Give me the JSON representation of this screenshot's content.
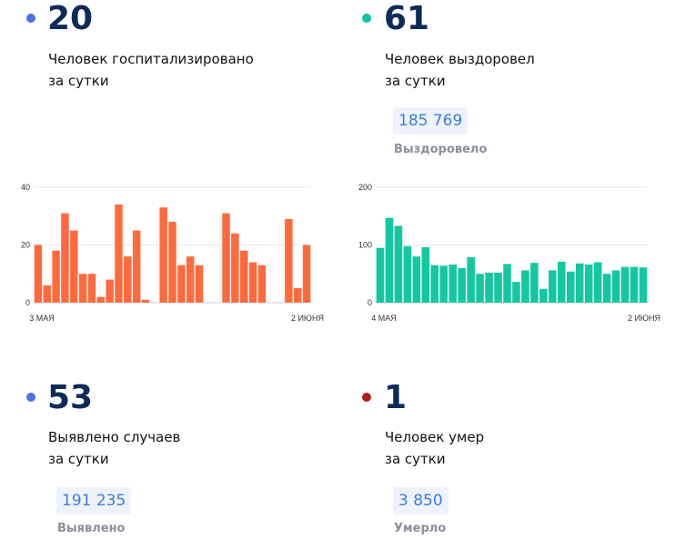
{
  "colors": {
    "dot_hospitalized": "#4a72e0",
    "dot_recovered": "#12c2a0",
    "dot_cases": "#4a72e0",
    "dot_deaths": "#b01c1c",
    "bars_hospitalized": "#ff6a3d",
    "bars_recovered": "#14c7a1"
  },
  "hospitalized": {
    "number": "20",
    "label_line1": "Человек госпитализировано",
    "label_line2": "за сутки"
  },
  "recovered": {
    "number": "61",
    "label_line1": "Человек выздоровел",
    "label_line2": "за сутки",
    "total": "185 769",
    "total_caption": "Выздоровело"
  },
  "cases": {
    "number": "53",
    "label_line1": "Выявлено случаев",
    "label_line2": "за сутки",
    "total": "191 235",
    "total_caption": "Выявлено"
  },
  "deaths": {
    "number": "1",
    "label_line1": "Человек умер",
    "label_line2": "за сутки",
    "total": "3 850",
    "total_caption": "Умерло"
  },
  "chart_data": [
    {
      "type": "bar",
      "x_start_label": "3 МАЯ",
      "x_end_label": "2 ИЮНЯ",
      "yticks": [
        0,
        20,
        40
      ],
      "ylim": [
        0,
        40
      ],
      "grid": true,
      "values": [
        20,
        6,
        18,
        31,
        25,
        10,
        10,
        2,
        8,
        34,
        16,
        25,
        1,
        null,
        33,
        28,
        13,
        16,
        13,
        null,
        null,
        31,
        24,
        18,
        14,
        13,
        null,
        null,
        29,
        5,
        20
      ]
    },
    {
      "type": "bar",
      "x_start_label": "4 МАЯ",
      "x_end_label": "2 ИЮНЯ",
      "yticks": [
        0,
        100,
        200
      ],
      "ylim": [
        0,
        200
      ],
      "grid": true,
      "values": [
        95,
        147,
        133,
        98,
        80,
        96,
        65,
        64,
        66,
        60,
        79,
        50,
        52,
        52,
        67,
        36,
        56,
        69,
        24,
        56,
        71,
        54,
        68,
        66,
        70,
        50,
        56,
        62,
        62,
        61
      ]
    }
  ]
}
